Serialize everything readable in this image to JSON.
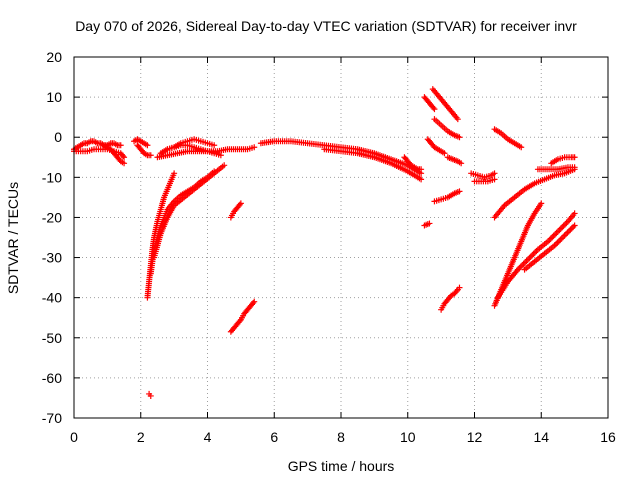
{
  "chart_data": {
    "type": "scatter",
    "title": "Day 070 of 2026, Sidereal Day-to-day VTEC variation (SDTVAR) for receiver invr",
    "xlabel": "GPS time / hours",
    "ylabel": "SDTVAR / TECUs",
    "xlim": [
      0,
      16
    ],
    "ylim": [
      -70,
      20
    ],
    "xticks": [
      0,
      2,
      4,
      6,
      8,
      10,
      12,
      14,
      16
    ],
    "yticks": [
      20,
      10,
      0,
      -10,
      -20,
      -30,
      -40,
      -50,
      -60,
      -70
    ],
    "grid": true,
    "marker": "+",
    "color": "#ff0000",
    "series": [
      {
        "name": "s1",
        "x": [
          0.0,
          0.1,
          0.2,
          0.3,
          0.4,
          0.5,
          0.6,
          0.7,
          0.8,
          0.9,
          1.0,
          1.1,
          1.2,
          1.3,
          1.4
        ],
        "y": [
          -3,
          -2.5,
          -2,
          -1.5,
          -1.5,
          -1,
          -1,
          -1.5,
          -1.5,
          -2,
          -2,
          -1.5,
          -1.5,
          -2,
          -2
        ]
      },
      {
        "name": "s2",
        "x": [
          0.0,
          0.2,
          0.4,
          0.6,
          0.8,
          1.0,
          1.2,
          1.4,
          1.5
        ],
        "y": [
          -3.5,
          -3.5,
          -3.5,
          -3,
          -3,
          -3,
          -3.5,
          -4,
          -5
        ]
      },
      {
        "name": "s3",
        "x": [
          0.9,
          1.0,
          1.1,
          1.2,
          1.3,
          1.4,
          1.5
        ],
        "y": [
          -2,
          -2.5,
          -3,
          -4,
          -5,
          -6,
          -6.5
        ]
      },
      {
        "name": "s4",
        "x": [
          1.8,
          1.9,
          2.0,
          2.1,
          2.2
        ],
        "y": [
          -1,
          -0.5,
          -1,
          -1.5,
          -2
        ]
      },
      {
        "name": "s5",
        "x": [
          1.9,
          2.0,
          2.1,
          2.2,
          2.3
        ],
        "y": [
          -2,
          -3,
          -4,
          -4.5,
          -4.5
        ]
      },
      {
        "name": "s6",
        "x": [
          2.2,
          2.25,
          2.3,
          2.35,
          2.4,
          2.5,
          2.6,
          2.7,
          2.8,
          2.9,
          3.0
        ],
        "y": [
          -40,
          -36,
          -32,
          -28,
          -25,
          -21,
          -18,
          -15,
          -13,
          -11,
          -9
        ]
      },
      {
        "name": "s7",
        "x": [
          2.3,
          2.35,
          2.4,
          2.5,
          2.6,
          2.7,
          2.8,
          3.0,
          3.2,
          3.4,
          3.6,
          3.8,
          4.0,
          4.2
        ],
        "y": [
          -34,
          -31,
          -28,
          -25,
          -22,
          -20,
          -18,
          -16,
          -14.5,
          -13.5,
          -12.5,
          -11,
          -10,
          -8.5
        ]
      },
      {
        "name": "s8",
        "x": [
          2.4,
          2.6,
          2.8,
          3.0,
          3.3,
          3.6,
          3.9,
          4.2,
          4.5
        ],
        "y": [
          -30,
          -24,
          -20,
          -17,
          -15,
          -13,
          -11,
          -9,
          -7
        ]
      },
      {
        "name": "s9",
        "x": [
          2.6,
          2.8,
          3.0,
          3.2,
          3.4,
          3.6,
          3.8,
          4.0,
          4.2
        ],
        "y": [
          -4,
          -3,
          -2.5,
          -1.5,
          -1,
          -0.5,
          -1,
          -1.5,
          -2
        ]
      },
      {
        "name": "s10",
        "x": [
          2.5,
          2.8,
          3.1,
          3.4,
          3.7,
          4.0,
          4.3,
          4.6,
          4.9,
          5.2,
          5.4
        ],
        "y": [
          -5,
          -4.5,
          -4,
          -3.5,
          -3.5,
          -3.5,
          -3.5,
          -3,
          -3,
          -3,
          -2.5
        ]
      },
      {
        "name": "s11",
        "x": [
          2.8,
          3.0,
          3.2,
          3.4,
          3.6,
          3.8,
          4.0,
          4.2,
          4.4
        ],
        "y": [
          -3,
          -2.5,
          -2,
          -2,
          -2.5,
          -3,
          -3.5,
          -4,
          -4.5
        ]
      },
      {
        "name": "s12",
        "x": [
          4.7,
          4.8,
          4.9,
          5.0
        ],
        "y": [
          -20,
          -18.5,
          -17.5,
          -16.5
        ]
      },
      {
        "name": "s13",
        "x": [
          4.7,
          4.8,
          4.9,
          5.0,
          5.1,
          5.2,
          5.3,
          5.4
        ],
        "y": [
          -48.5,
          -47.5,
          -46.5,
          -45.5,
          -44,
          -43,
          -42,
          -41
        ]
      },
      {
        "name": "s14",
        "x": [
          2.25,
          2.3
        ],
        "y": [
          -64,
          -64.5
        ]
      },
      {
        "name": "s15",
        "x": [
          5.6,
          6.0,
          6.5,
          7.0,
          7.5,
          8.0,
          8.5,
          9.0,
          9.5,
          10.0,
          10.4
        ],
        "y": [
          -1.5,
          -1,
          -1,
          -1.5,
          -2,
          -2.5,
          -3,
          -4,
          -5.5,
          -7,
          -9
        ]
      },
      {
        "name": "s16",
        "x": [
          7.5,
          8.0,
          8.5,
          9.0,
          9.5,
          10.0,
          10.4
        ],
        "y": [
          -3,
          -3.5,
          -4,
          -5,
          -6.5,
          -8.5,
          -10.5
        ]
      },
      {
        "name": "s17",
        "x": [
          9.9,
          10.0,
          10.1,
          10.2,
          10.3,
          10.4
        ],
        "y": [
          -5,
          -6,
          -7,
          -7.5,
          -8,
          -8
        ]
      },
      {
        "name": "s18",
        "x": [
          10.5,
          10.6,
          10.7,
          10.8
        ],
        "y": [
          10,
          9,
          8,
          7
        ]
      },
      {
        "name": "s19",
        "x": [
          10.75,
          10.9,
          11.05,
          11.2,
          11.35,
          11.5
        ],
        "y": [
          12,
          10.5,
          9,
          7.5,
          6,
          4.5
        ]
      },
      {
        "name": "s20",
        "x": [
          10.8,
          11.0,
          11.2,
          11.4,
          11.55
        ],
        "y": [
          4.5,
          3,
          1.5,
          0.5,
          0
        ]
      },
      {
        "name": "s21",
        "x": [
          10.6,
          10.7,
          10.8,
          10.9,
          11.0,
          11.1
        ],
        "y": [
          -0.5,
          -1.5,
          -2.5,
          -3,
          -3.5,
          -4
        ]
      },
      {
        "name": "s22",
        "x": [
          11.2,
          11.35,
          11.5,
          11.6
        ],
        "y": [
          -5,
          -5.5,
          -6,
          -6.5
        ]
      },
      {
        "name": "s23",
        "x": [
          10.8,
          11.0,
          11.2,
          11.4,
          11.55
        ],
        "y": [
          -16,
          -15.5,
          -15,
          -14,
          -13.5
        ]
      },
      {
        "name": "s24",
        "x": [
          10.5,
          10.65
        ],
        "y": [
          -22,
          -21.5
        ]
      },
      {
        "name": "s25",
        "x": [
          11.0,
          11.1,
          11.2,
          11.3,
          11.4,
          11.5,
          11.55
        ],
        "y": [
          -43,
          -41.5,
          -40.5,
          -39.5,
          -39,
          -38,
          -37.5
        ]
      },
      {
        "name": "s26",
        "x": [
          11.9,
          12.1,
          12.3,
          12.5,
          12.6
        ],
        "y": [
          -9,
          -9.5,
          -10,
          -9.5,
          -9
        ]
      },
      {
        "name": "s27",
        "x": [
          12.0,
          12.2,
          12.4,
          12.6
        ],
        "y": [
          -11,
          -11,
          -11,
          -10.5
        ]
      },
      {
        "name": "s28",
        "x": [
          12.6,
          12.8,
          13.0,
          13.2,
          13.4
        ],
        "y": [
          2,
          1,
          -0.5,
          -1.5,
          -2.5
        ]
      },
      {
        "name": "s29",
        "x": [
          12.6,
          12.9,
          13.2,
          13.5,
          13.8,
          14.1,
          14.4,
          14.7,
          15.0
        ],
        "y": [
          -20,
          -17,
          -15,
          -13,
          -11.5,
          -10.5,
          -9.5,
          -9,
          -8
        ]
      },
      {
        "name": "s30",
        "x": [
          12.6,
          12.8,
          13.0,
          13.2,
          13.4,
          13.6,
          13.8,
          14.0
        ],
        "y": [
          -42,
          -38,
          -34,
          -30,
          -26,
          -22,
          -19,
          -16.5
        ]
      },
      {
        "name": "s31",
        "x": [
          12.7,
          13.0,
          13.3,
          13.6,
          13.9,
          14.2,
          14.5,
          14.8,
          15.0
        ],
        "y": [
          -40,
          -36,
          -33,
          -30.5,
          -28,
          -26,
          -23.5,
          -21,
          -19
        ]
      },
      {
        "name": "s32",
        "x": [
          13.5,
          13.8,
          14.1,
          14.4,
          14.7,
          15.0
        ],
        "y": [
          -33,
          -31,
          -29,
          -27,
          -24.5,
          -22
        ]
      },
      {
        "name": "s33",
        "x": [
          13.9,
          14.2,
          14.5,
          14.8,
          15.0
        ],
        "y": [
          -8,
          -8,
          -8,
          -7.5,
          -7.5
        ]
      },
      {
        "name": "s34",
        "x": [
          14.3,
          14.5,
          14.7,
          14.9,
          15.0
        ],
        "y": [
          -6.5,
          -5.5,
          -5,
          -5,
          -5
        ]
      }
    ]
  }
}
